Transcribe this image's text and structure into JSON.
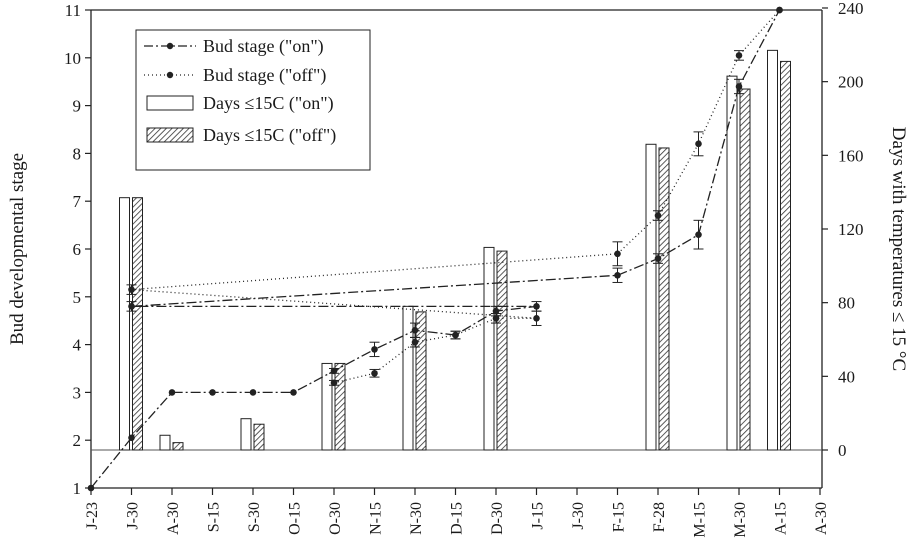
{
  "chart_data": {
    "type": "bar+line",
    "title": "",
    "categories": [
      "J-23",
      "J-30",
      "A-30",
      "S-15",
      "S-30",
      "O-15",
      "O-30",
      "N-15",
      "N-30",
      "D-15",
      "D-30",
      "J-15",
      "J-30",
      "F-15",
      "F-28",
      "M-15",
      "M-30",
      "A-15",
      "A-30"
    ],
    "left_axis": {
      "label": "Bud developmental stage",
      "ylim": [
        1,
        11
      ],
      "ticks": [
        1,
        2,
        3,
        4,
        5,
        6,
        7,
        8,
        9,
        10,
        11
      ]
    },
    "right_axis": {
      "label": "Days with temperatures ≤ 15 °C",
      "ylim": [
        -20,
        240
      ],
      "ticks": [
        0,
        40,
        80,
        120,
        160,
        200,
        240
      ]
    },
    "legend_position": "top-left",
    "line_series": [
      {
        "name": "Bud stage (\"on\")",
        "style": "dash-dot",
        "points": [
          {
            "x": "J-23",
            "y": 1.0
          },
          {
            "x": "J-30",
            "y": 2.05
          },
          {
            "x": "A-30",
            "y": 3.0
          },
          {
            "x": "S-15",
            "y": 3.0
          },
          {
            "x": "S-30",
            "y": 3.0
          },
          {
            "x": "O-15",
            "y": 3.0
          },
          {
            "x": "O-30",
            "y": 3.45
          },
          {
            "x": "N-15",
            "y": 3.9
          },
          {
            "x": "N-30",
            "y": 4.3
          },
          {
            "x": "D-15",
            "y": 4.2
          },
          {
            "x": "D-30",
            "y": 4.7
          },
          {
            "x": "J-15",
            "y": 4.8
          },
          {
            "x": "J-30",
            "y": 4.8
          },
          {
            "x": "F-15",
            "y": 5.45
          },
          {
            "x": "F-28",
            "y": 5.8
          },
          {
            "x": "M-15",
            "y": 6.3
          },
          {
            "x": "M-30",
            "y": 9.4
          },
          {
            "x": "A-15",
            "y": 11.0
          }
        ],
        "errors": [
          0,
          0,
          0,
          0,
          0,
          0,
          0.05,
          0.15,
          0.15,
          0.08,
          0.1,
          0.1,
          0.1,
          0.15,
          0.1,
          0.3,
          0.15,
          0
        ]
      },
      {
        "name": "Bud stage (\"off\")",
        "style": "dotted",
        "points": [
          {
            "x": "O-30",
            "y": 3.2
          },
          {
            "x": "N-15",
            "y": 3.4
          },
          {
            "x": "N-30",
            "y": 4.05
          },
          {
            "x": "D-15",
            "y": 4.2
          },
          {
            "x": "D-30",
            "y": 4.55
          },
          {
            "x": "J-15",
            "y": 4.55
          },
          {
            "x": "J-30",
            "y": 5.15
          },
          {
            "x": "F-15",
            "y": 5.9
          },
          {
            "x": "F-28",
            "y": 6.7
          },
          {
            "x": "M-15",
            "y": 8.2
          },
          {
            "x": "M-30",
            "y": 10.05
          },
          {
            "x": "A-15",
            "y": 11.0
          }
        ],
        "errors": [
          0.05,
          0.08,
          0.1,
          0.08,
          0.1,
          0.15,
          0.1,
          0.25,
          0.1,
          0.25,
          0.1,
          0
        ]
      }
    ],
    "bar_series": [
      {
        "name": "Days ≤15C (\"on\")",
        "fill": "open",
        "values": [
          {
            "x": "A-30",
            "y": 8
          },
          {
            "x": "S-30",
            "y": 17
          },
          {
            "x": "O-30",
            "y": 47
          },
          {
            "x": "N-30",
            "y": 78
          },
          {
            "x": "D-30",
            "y": 110
          },
          {
            "x": "J-30",
            "y": 137
          },
          {
            "x": "F-28",
            "y": 166
          },
          {
            "x": "M-30",
            "y": 203
          },
          {
            "x": "A-15",
            "y": 217
          }
        ]
      },
      {
        "name": "Days ≤15C (\"off\")",
        "fill": "hatched",
        "values": [
          {
            "x": "A-30",
            "y": 4
          },
          {
            "x": "S-30",
            "y": 14
          },
          {
            "x": "O-30",
            "y": 47
          },
          {
            "x": "N-30",
            "y": 75
          },
          {
            "x": "D-30",
            "y": 108
          },
          {
            "x": "J-30",
            "y": 137
          },
          {
            "x": "F-28",
            "y": 164
          },
          {
            "x": "M-30",
            "y": 196
          },
          {
            "x": "A-15",
            "y": 211
          }
        ]
      }
    ]
  }
}
